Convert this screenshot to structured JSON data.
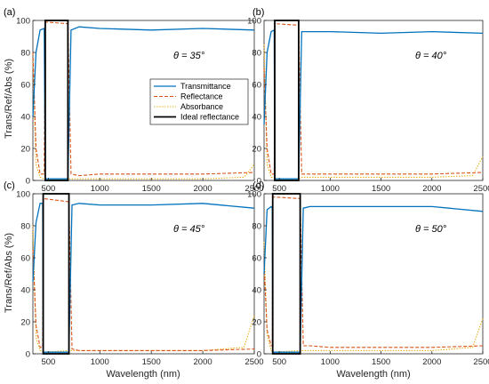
{
  "chart_data": {
    "type": "line",
    "xlabel": "Wavelength (nm)",
    "ylabel": "Trans/Ref/Abs (%)",
    "xlim": [
      350,
      2500
    ],
    "ylim": [
      0,
      100
    ],
    "x_ticks": [
      500,
      1000,
      1500,
      2000,
      2500
    ],
    "y_ticks": [
      0,
      20,
      40,
      60,
      80,
      100
    ],
    "grid": false,
    "legend_location": "inside panel (a), center-right",
    "legend": [
      "Transmittance",
      "Reflectance",
      "Absorbance",
      "Ideal reflectance"
    ],
    "series_colors": {
      "Transmittance": "#0072BD",
      "Reflectance": "#D95319",
      "Absorbance": "#EDB120",
      "Ideal reflectance": "#000000"
    },
    "panels": [
      {
        "label": "(a)",
        "angle_text": "θ = 35°",
        "band": [
          470,
          690
        ],
        "transmittance": {
          "x": [
            350,
            380,
            420,
            460,
            470,
            690,
            720,
            800,
            1000,
            1500,
            2000,
            2500
          ],
          "y": [
            40,
            80,
            94,
            95,
            1,
            1,
            94,
            96,
            95,
            94,
            95,
            94
          ]
        },
        "reflectance": {
          "x": [
            350,
            380,
            420,
            460,
            470,
            690,
            720,
            800,
            1000,
            1500,
            2000,
            2500
          ],
          "y": [
            80,
            20,
            4,
            4,
            99,
            98,
            4,
            3,
            4,
            4,
            4,
            5
          ]
        },
        "absorbance": {
          "x": [
            350,
            380,
            420,
            460,
            470,
            690,
            720,
            800,
            1000,
            1500,
            2000,
            2400,
            2500
          ],
          "y": [
            75,
            10,
            2,
            1,
            1,
            1,
            1,
            1,
            1,
            1,
            1,
            2,
            10
          ]
        }
      },
      {
        "label": "(b)",
        "angle_text": "θ = 40°",
        "band": [
          455,
          690
        ],
        "transmittance": {
          "x": [
            350,
            380,
            420,
            450,
            455,
            690,
            720,
            800,
            1000,
            1500,
            2000,
            2500
          ],
          "y": [
            35,
            80,
            93,
            94,
            1,
            1,
            93,
            93,
            93,
            92,
            93,
            92
          ]
        },
        "reflectance": {
          "x": [
            350,
            380,
            420,
            450,
            455,
            690,
            720,
            800,
            1000,
            1500,
            2000,
            2500
          ],
          "y": [
            70,
            20,
            4,
            4,
            98,
            97,
            4,
            4,
            4,
            4,
            4,
            5
          ]
        },
        "absorbance": {
          "x": [
            350,
            380,
            420,
            450,
            455,
            690,
            720,
            800,
            1000,
            1500,
            2000,
            2400,
            2500
          ],
          "y": [
            85,
            10,
            2,
            2,
            1,
            1,
            2,
            2,
            2,
            2,
            2,
            3,
            15
          ]
        }
      },
      {
        "label": "(c)",
        "angle_text": "θ = 45°",
        "band": [
          450,
          700
        ],
        "transmittance": {
          "x": [
            350,
            380,
            420,
            445,
            450,
            700,
            730,
            800,
            1000,
            1500,
            2000,
            2500
          ],
          "y": [
            45,
            82,
            94,
            94,
            1,
            1,
            93,
            94,
            93,
            93,
            94,
            91
          ]
        },
        "reflectance": {
          "x": [
            350,
            380,
            420,
            445,
            450,
            700,
            730,
            800,
            1000,
            1500,
            2000,
            2500
          ],
          "y": [
            65,
            18,
            4,
            4,
            97,
            95,
            3,
            2,
            2,
            2,
            2,
            3
          ]
        },
        "absorbance": {
          "x": [
            350,
            380,
            420,
            445,
            450,
            700,
            730,
            800,
            1000,
            1500,
            2000,
            2400,
            2500
          ],
          "y": [
            80,
            10,
            2,
            2,
            1,
            2,
            2,
            2,
            2,
            2,
            2,
            4,
            24
          ]
        }
      },
      {
        "label": "(d)",
        "angle_text": "θ = 50°",
        "band": [
          435,
          705
        ],
        "transmittance": {
          "x": [
            350,
            380,
            420,
            430,
            435,
            705,
            735,
            800,
            1000,
            1500,
            2000,
            2500
          ],
          "y": [
            50,
            90,
            92,
            91,
            1,
            1,
            91,
            92,
            92,
            92,
            92,
            89
          ]
        },
        "reflectance": {
          "x": [
            350,
            380,
            420,
            430,
            435,
            705,
            735,
            800,
            1000,
            1500,
            2000,
            2500
          ],
          "y": [
            55,
            15,
            5,
            5,
            98,
            97,
            5,
            5,
            4,
            4,
            4,
            5
          ]
        },
        "absorbance": {
          "x": [
            350,
            380,
            420,
            430,
            435,
            705,
            735,
            800,
            1000,
            1500,
            2000,
            2400,
            2500
          ],
          "y": [
            70,
            12,
            2,
            2,
            1,
            2,
            2,
            2,
            2,
            2,
            2,
            4,
            22
          ]
        }
      }
    ]
  }
}
